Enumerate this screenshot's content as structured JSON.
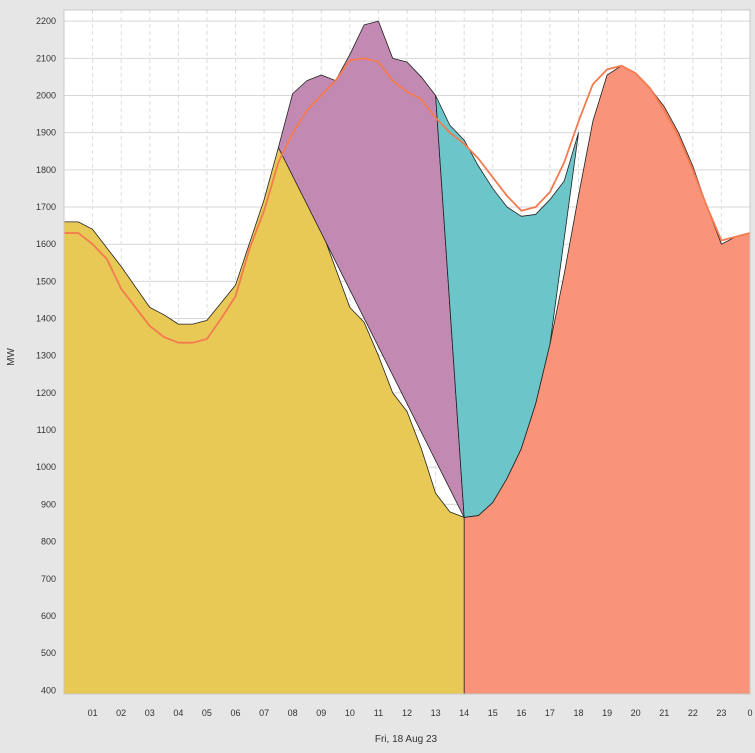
{
  "chart_data": {
    "type": "area",
    "xlabel": "Fri, 18 Aug 23",
    "ylabel": "MW",
    "ylim": [
      390,
      2230
    ],
    "xlim": [
      0.0,
      24.0
    ],
    "grid": true,
    "x_ticks": [
      "01",
      "02",
      "03",
      "04",
      "05",
      "06",
      "07",
      "08",
      "09",
      "10",
      "11",
      "12",
      "13",
      "14",
      "15",
      "16",
      "17",
      "18",
      "19",
      "20",
      "21",
      "22",
      "23",
      "0"
    ],
    "y_ticks": [
      400,
      500,
      600,
      700,
      800,
      900,
      1000,
      1100,
      1200,
      1300,
      1400,
      1500,
      1600,
      1700,
      1800,
      1900,
      2000,
      2100,
      2200
    ],
    "colors": {
      "yellow": "#e8c955",
      "purple": "#c28ab2",
      "teal": "#6cc5c9",
      "salmon": "#f99379",
      "line": "#f37b50",
      "outline": "#222222"
    },
    "series": [
      {
        "color_key": "yellow",
        "x": [
          0.0,
          0.5,
          1.0,
          2.0,
          3.0,
          3.5,
          4.0,
          4.5,
          5.0,
          6.0,
          7.0,
          7.5,
          8.0,
          8.5,
          9.0,
          10.0,
          10.5,
          11.0,
          11.5,
          12.0,
          12.5,
          13.0,
          13.5,
          14.0,
          14.3
        ],
        "y": [
          1660,
          1660,
          1640,
          1540,
          1430,
          1410,
          1385,
          1385,
          1395,
          1490,
          1720,
          1860,
          1890,
          1820,
          1640,
          1430,
          1390,
          1300,
          1200,
          1150,
          1050,
          930,
          880,
          865,
          390
        ]
      },
      {
        "color_key": "purple",
        "x": [
          7.5,
          8.0,
          8.5,
          9.0,
          9.5,
          10.0,
          10.5,
          11.0,
          11.5,
          12.0,
          12.5,
          13.0,
          14.0
        ],
        "y": [
          1860,
          2005,
          2040,
          2055,
          2040,
          2110,
          2190,
          2200,
          2100,
          2090,
          2050,
          2000,
          865
        ]
      },
      {
        "color_key": "teal",
        "x": [
          13.0,
          13.5,
          14.0,
          14.5,
          15.0,
          15.5,
          16.0,
          16.5,
          17.0,
          17.5,
          18.0,
          17.0,
          16.5,
          16.0,
          15.5,
          15.0,
          14.5,
          14.0
        ],
        "y": [
          2000,
          1920,
          1880,
          1810,
          1750,
          1700,
          1675,
          1680,
          1720,
          1770,
          1900,
          1330,
          1170,
          1050,
          970,
          905,
          870,
          865
        ]
      },
      {
        "color_key": "salmon",
        "x": [
          14.0,
          14.5,
          15.0,
          15.5,
          16.0,
          16.5,
          17.0,
          17.5,
          18.0,
          18.5,
          19.0,
          19.5,
          20.0,
          20.5,
          21.0,
          21.5,
          22.0,
          22.5,
          23.0,
          23.5,
          24.0
        ],
        "y": [
          865,
          870,
          905,
          970,
          1050,
          1170,
          1330,
          1520,
          1730,
          1930,
          2055,
          2080,
          2060,
          2020,
          1970,
          1900,
          1810,
          1700,
          1600,
          1620,
          1630
        ]
      },
      {
        "color_key": "line",
        "x": [
          0.0,
          0.5,
          1.0,
          1.5,
          2.0,
          2.5,
          3.0,
          3.5,
          4.0,
          4.5,
          5.0,
          5.5,
          6.0,
          6.5,
          7.0,
          7.5,
          8.0,
          8.5,
          9.0,
          9.5,
          10.0,
          10.5,
          11.0,
          11.5,
          12.0,
          12.5,
          13.0,
          13.5,
          14.0,
          14.5,
          15.0,
          15.5,
          16.0,
          16.5,
          17.0,
          17.5,
          18.0,
          18.5,
          19.0,
          19.5,
          20.0,
          20.5,
          21.0,
          21.5,
          22.0,
          22.5,
          23.0,
          23.5,
          24.0
        ],
        "y": [
          1630,
          1630,
          1600,
          1560,
          1480,
          1430,
          1380,
          1350,
          1335,
          1335,
          1345,
          1400,
          1460,
          1590,
          1690,
          1820,
          1900,
          1960,
          2000,
          2040,
          2095,
          2100,
          2090,
          2040,
          2010,
          1990,
          1940,
          1900,
          1870,
          1830,
          1780,
          1730,
          1690,
          1700,
          1740,
          1820,
          1930,
          2030,
          2070,
          2080,
          2060,
          2020,
          1960,
          1890,
          1800,
          1700,
          1610,
          1620,
          1630
        ]
      }
    ]
  }
}
